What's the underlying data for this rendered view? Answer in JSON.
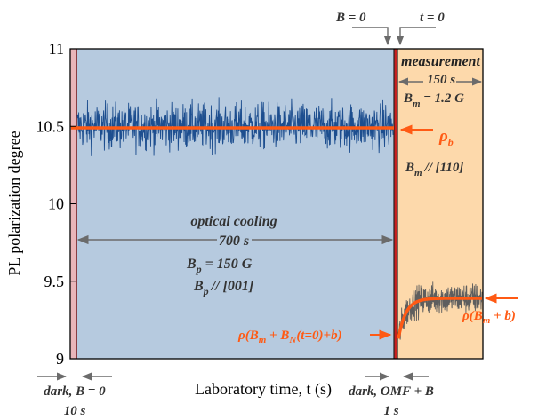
{
  "chart_data": {
    "type": "line",
    "xlabel": "Laboratory time, t (s)",
    "ylabel": "PL polarization degree",
    "ylim": [
      9,
      11
    ],
    "yticks": [
      "9",
      "9.5",
      "10",
      "10.5",
      "11"
    ],
    "phases": [
      {
        "name": "dark_initial",
        "duration_s": 10,
        "color": "#e9b5b9"
      },
      {
        "name": "optical_cooling",
        "duration_s": 700,
        "color": "#b6cadf"
      },
      {
        "name": "dark_omf",
        "duration_s": 1,
        "color": "#c8201e"
      },
      {
        "name": "measurement",
        "duration_s": 150,
        "color": "#fdd9ab"
      }
    ],
    "series": [
      {
        "kind": "noisy",
        "phase": "optical_cooling",
        "mean": 10.5,
        "spread": 0.27,
        "color": "#1d4e8f"
      },
      {
        "kind": "noisy_relax",
        "phase": "measurement",
        "start": 9.13,
        "end": 9.39,
        "spread": 0.18,
        "color": "#5e5e5e"
      },
      {
        "kind": "fit_flat",
        "phase": "optical_cooling",
        "value": 10.49,
        "color": "#ff5a14"
      },
      {
        "kind": "fit_relax",
        "phase": "measurement",
        "start": 9.13,
        "end": 9.39,
        "color": "#ff5a14"
      }
    ]
  },
  "annotations": {
    "b_zero": "B = 0",
    "t_zero": "t = 0",
    "measurement": "measurement",
    "meas_duration": "150 s",
    "bm_value_main": "B",
    "bm_value_sub": "m",
    "bm_value_rest": " = 1.2 G",
    "rho_b_main": "ρ",
    "rho_b_sub": "b",
    "bm_dir_main": "B",
    "bm_dir_sub": "m",
    "bm_dir_rest": "// [110]",
    "optical_cooling": "optical cooling",
    "cooling_duration": "700 s",
    "bp_value_main": "B",
    "bp_value_sub": "p",
    "bp_value_rest": " = 150 G",
    "bp_dir_main": "B",
    "bp_dir_sub": "p",
    "bp_dir_rest": "// [001]",
    "rho_t0_a": "ρ(B",
    "rho_t0_sub1": "m",
    "rho_t0_b": " + B",
    "rho_t0_sub2": "N",
    "rho_t0_c": "(t=0)+b)",
    "rho_inf_a": "ρ(B",
    "rho_inf_sub": "m",
    "rho_inf_b": " + b)",
    "dark_b0": "dark, B = 0",
    "dark_b0_dur": "10 s",
    "dark_omf": "dark, OMF + B",
    "dark_omf_dur": "1 s"
  }
}
